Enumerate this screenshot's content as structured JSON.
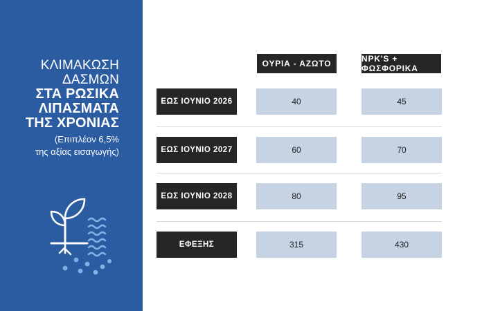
{
  "sidebar": {
    "title_light": [
      "ΚΛΙΜΑΚΩΣΗ",
      "ΔΑΣΜΩΝ"
    ],
    "title_bold": [
      "ΣΤΑ ΡΩΣΙΚΑ",
      "ΛΙΠΑΣΜΑΤΑ",
      "ΤΗΣ ΧΡΟΝΙΑΣ"
    ],
    "note": [
      "(Επιπλέον 6,5%",
      "της αξίας εισαγωγής)"
    ],
    "background_color": "#2b5ba0",
    "icon": "plant-with-fertilizer-granules-icon"
  },
  "table": {
    "columns": [
      "ΟΥΡΙΑ - ΑΖΩΤΟ",
      "NPK'S + ΦΩΣΦΟΡΙΚΑ"
    ],
    "rows": [
      {
        "label": "ΕΩΣ ΙΟΥΝΙΟ 2026",
        "values": [
          "40",
          "45"
        ]
      },
      {
        "label": "ΕΩΣ ΙΟΥΝΙΟ 2027",
        "values": [
          "60",
          "70"
        ]
      },
      {
        "label": "ΕΩΣ ΙΟΥΝΙΟ 2028",
        "values": [
          "80",
          "95"
        ]
      },
      {
        "label": "ΕΦΕΞΗΣ",
        "values": [
          "315",
          "430"
        ]
      }
    ],
    "label_color": "#262626",
    "cell_color": "#c5d3e3"
  }
}
